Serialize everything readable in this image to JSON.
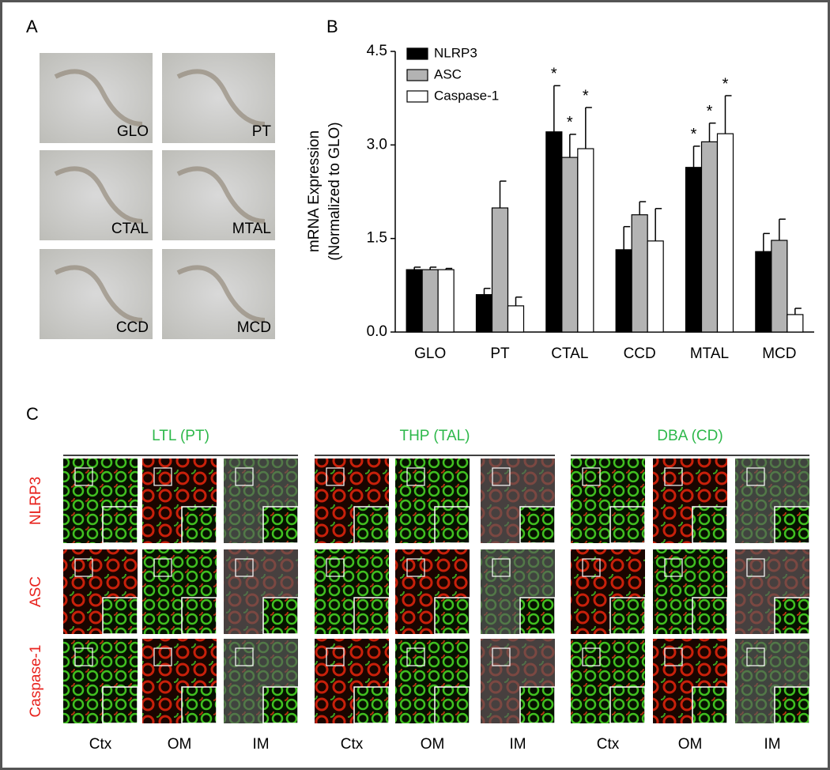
{
  "panel_labels": [
    "A",
    "B",
    "C"
  ],
  "panel_a": {
    "images": [
      "GLO",
      "PT",
      "CTAL",
      "MTAL",
      "CCD",
      "MCD"
    ]
  },
  "chart_data": {
    "type": "bar",
    "ylabel": [
      "mRNA Expression",
      "(Normalized to GLO)"
    ],
    "categories": [
      "GLO",
      "PT",
      "CTAL",
      "CCD",
      "MTAL",
      "MCD"
    ],
    "series": [
      {
        "name": "NLRP3",
        "color": "#000000",
        "values": [
          1.0,
          0.6,
          3.21,
          1.32,
          2.64,
          1.29
        ],
        "errors": [
          0.04,
          0.1,
          0.74,
          0.37,
          0.34,
          0.29
        ],
        "marks": [
          null,
          null,
          "*",
          null,
          "*",
          null
        ]
      },
      {
        "name": "ASC",
        "color": "#b3b3b3",
        "values": [
          1.0,
          1.99,
          2.8,
          1.88,
          3.05,
          1.47
        ],
        "errors": [
          0.04,
          0.43,
          0.37,
          0.21,
          0.3,
          0.34
        ],
        "marks": [
          null,
          null,
          "*",
          null,
          "*",
          null
        ]
      },
      {
        "name": "Caspase-1",
        "color": "#ffffff",
        "values": [
          1.0,
          0.42,
          2.94,
          1.46,
          3.18,
          0.28
        ],
        "errors": [
          0.02,
          0.14,
          0.66,
          0.52,
          0.61,
          0.1
        ],
        "marks": [
          null,
          null,
          "*",
          null,
          "*",
          null
        ]
      }
    ],
    "ylim": [
      0,
      4.5
    ],
    "yticks": [
      {
        "value": 0,
        "label": "0.0"
      },
      1.5,
      {
        "value": 3,
        "label": "3.0"
      },
      4.5
    ]
  },
  "panel_c": {
    "groups": [
      "LTL (PT)",
      "THP (TAL)",
      "DBA (CD)"
    ],
    "rows": [
      "NLRP3",
      "ASC",
      "Caspase-1"
    ],
    "columns": [
      "Ctx",
      "OM",
      "IM"
    ]
  }
}
